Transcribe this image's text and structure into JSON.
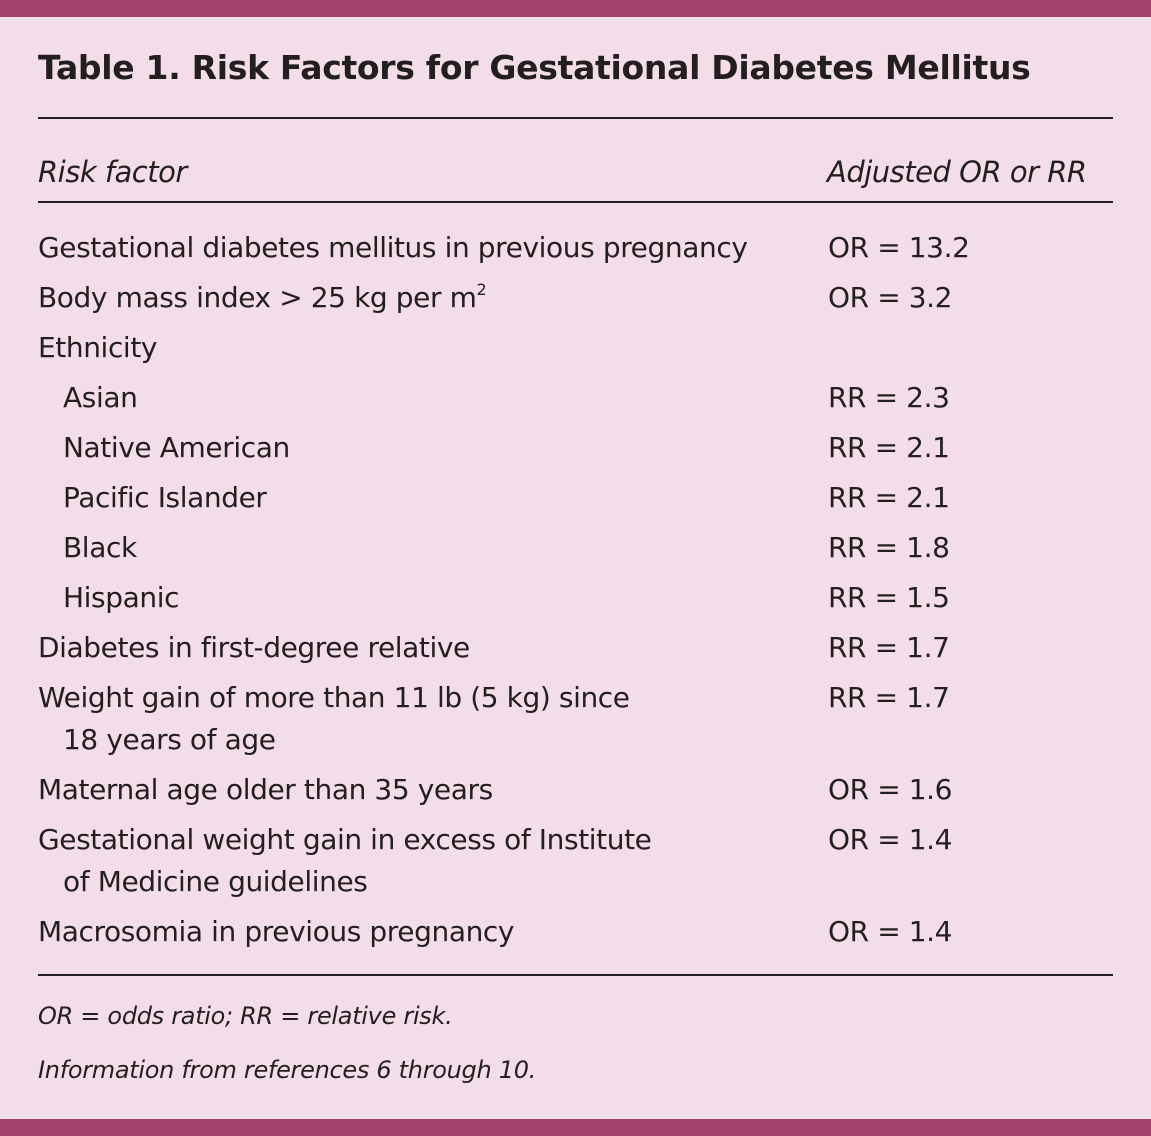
{
  "title": "Table 1. Risk Factors for Gestational Diabetes Mellitus",
  "colors": {
    "band": "#a2406e",
    "background": "#f2dde8",
    "text": "#231f20"
  },
  "header": {
    "col1": "Risk factor",
    "col2": "Adjusted OR or RR"
  },
  "rows": [
    {
      "factor": "Gestational diabetes mellitus in previous pregnancy",
      "value": "OR = 13.2"
    },
    {
      "factor": "Body mass index > 25 kg per m",
      "sup": "2",
      "value": "OR = 3.2"
    },
    {
      "factor": "Ethnicity",
      "value": ""
    },
    {
      "factor": "Asian",
      "value": "RR = 2.3",
      "indent": true
    },
    {
      "factor": "Native American",
      "value": "RR = 2.1",
      "indent": true
    },
    {
      "factor": "Pacific Islander",
      "value": "RR = 2.1",
      "indent": true
    },
    {
      "factor": "Black",
      "value": "RR = 1.8",
      "indent": true
    },
    {
      "factor": "Hispanic",
      "value": "RR = 1.5",
      "indent": true
    },
    {
      "factor": "Diabetes in first-degree relative",
      "value": "RR = 1.7"
    },
    {
      "factor": "Weight gain of more than 11 lb (5 kg) since",
      "cont": "18 years of age",
      "value": "RR = 1.7"
    },
    {
      "factor": "Maternal age older than 35 years",
      "value": "OR = 1.6"
    },
    {
      "factor": "Gestational weight gain in excess of Institute",
      "cont": "of Medicine guidelines",
      "value": "OR = 1.4"
    },
    {
      "factor": "Macrosomia in previous pregnancy",
      "value": "OR = 1.4"
    }
  ],
  "footnotes": {
    "abbrev": "OR = odds ratio; RR = relative risk.",
    "source": "Information from references 6 through 10."
  }
}
